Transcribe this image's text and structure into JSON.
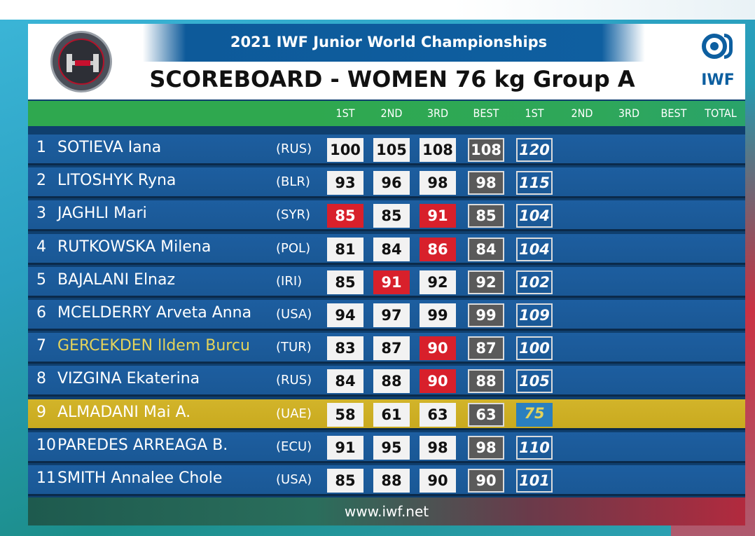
{
  "header": {
    "event_title": "2021 IWF Junior World Championships",
    "board_title": "SCOREBOARD - WOMEN 76 kg Group A",
    "org_logo_text": "IWF",
    "left_logo": "championship-logo-icon",
    "right_logo": "iwf-logo-icon"
  },
  "columns": [
    "1ST",
    "2ND",
    "3RD",
    "BEST",
    "1ST",
    "2ND",
    "3RD",
    "BEST",
    "TOTAL"
  ],
  "colors": {
    "good_lift": "#f2f2f2",
    "failed_lift": "#d8202b",
    "best": "#5a5a5a",
    "row": "#1d5ea0",
    "highlight_row": "#d2b42a",
    "header_green": "#2fa84f"
  },
  "rows": [
    {
      "rank": "1",
      "name": "SOTIEVA Iana",
      "nation": "(RUS)",
      "s1": "100",
      "s2": "105",
      "s3": "108",
      "best": "108",
      "cj1": "120",
      "s1_status": "good",
      "s2_status": "good",
      "s3_status": "good"
    },
    {
      "rank": "2",
      "name": "LITOSHYK Ryna",
      "nation": "(BLR)",
      "s1": "93",
      "s2": "96",
      "s3": "98",
      "best": "98",
      "cj1": "115",
      "s1_status": "good",
      "s2_status": "good",
      "s3_status": "good"
    },
    {
      "rank": "3",
      "name": "JAGHLI Mari",
      "nation": "(SYR)",
      "s1": "85",
      "s2": "85",
      "s3": "91",
      "best": "85",
      "cj1": "104",
      "s1_status": "fail",
      "s2_status": "good",
      "s3_status": "fail"
    },
    {
      "rank": "4",
      "name": "RUTKOWSKA Milena",
      "nation": "(POL)",
      "s1": "81",
      "s2": "84",
      "s3": "86",
      "best": "84",
      "cj1": "104",
      "s1_status": "good",
      "s2_status": "good",
      "s3_status": "fail"
    },
    {
      "rank": "5",
      "name": "BAJALANI Elnaz",
      "nation": "(IRI)",
      "s1": "85",
      "s2": "91",
      "s3": "92",
      "best": "92",
      "cj1": "102",
      "s1_status": "good",
      "s2_status": "fail",
      "s3_status": "good"
    },
    {
      "rank": "6",
      "name": "MCELDERRY Arveta Anna",
      "nation": "(USA)",
      "s1": "94",
      "s2": "97",
      "s3": "99",
      "best": "99",
      "cj1": "109",
      "s1_status": "good",
      "s2_status": "good",
      "s3_status": "good"
    },
    {
      "rank": "7",
      "name": "GERCEKDEN lldem Burcu",
      "nation": "(TUR)",
      "s1": "83",
      "s2": "87",
      "s3": "90",
      "best": "87",
      "cj1": "100",
      "s1_status": "good",
      "s2_status": "good",
      "s3_status": "fail"
    },
    {
      "rank": "8",
      "name": "VIZGINA Ekaterina",
      "nation": "(RUS)",
      "s1": "84",
      "s2": "88",
      "s3": "90",
      "best": "88",
      "cj1": "105",
      "s1_status": "good",
      "s2_status": "good",
      "s3_status": "fail"
    },
    {
      "rank": "9",
      "name": "ALMADANI Mai A.",
      "nation": "(UAE)",
      "s1": "58",
      "s2": "61",
      "s3": "63",
      "best": "63",
      "cj1": "75",
      "s1_status": "good",
      "s2_status": "good",
      "s3_status": "good"
    },
    {
      "rank": "10",
      "name": "PAREDES ARREAGA B.",
      "nation": "(ECU)",
      "s1": "91",
      "s2": "95",
      "s3": "98",
      "best": "98",
      "cj1": "110",
      "s1_status": "good",
      "s2_status": "good",
      "s3_status": "good"
    },
    {
      "rank": "11",
      "name": "SMITH Annalee Chole",
      "nation": "(USA)",
      "s1": "85",
      "s2": "88",
      "s3": "90",
      "best": "90",
      "cj1": "101",
      "s1_status": "good",
      "s2_status": "good",
      "s3_status": "good"
    }
  ],
  "footer": {
    "website": "www.iwf.net"
  }
}
